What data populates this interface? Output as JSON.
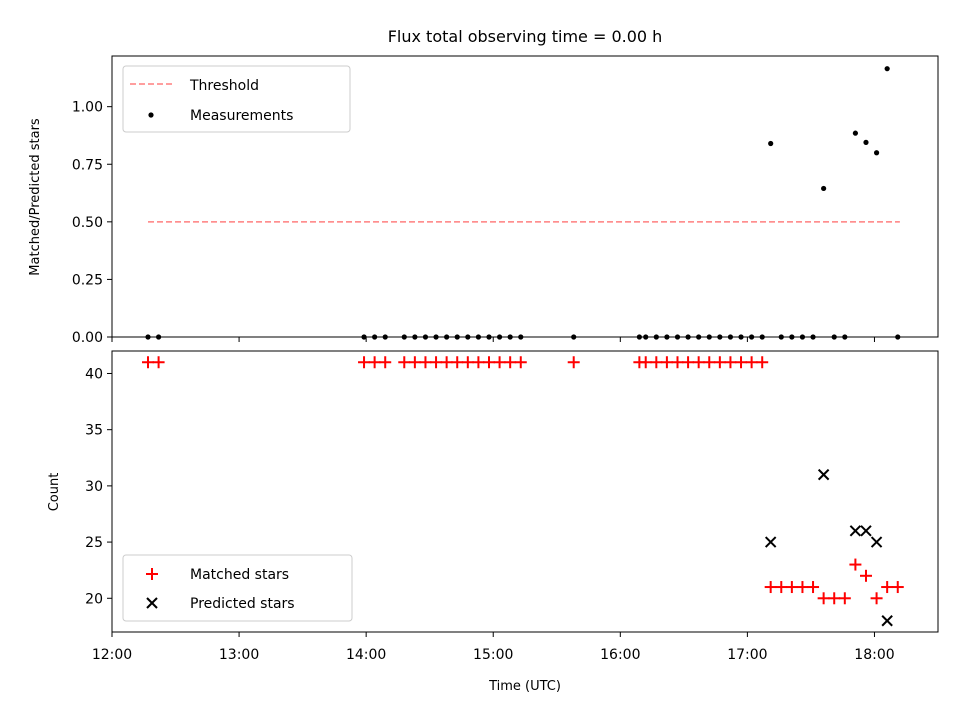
{
  "chart_data": [
    {
      "type": "scatter",
      "title": "Flux total observing time = 0.00 h",
      "xlabel": "",
      "ylabel": "Matched/Predicted stars",
      "xlim": [
        "12:00",
        "18:30"
      ],
      "ylim": [
        0,
        1.22
      ],
      "yticks": [
        0.0,
        0.25,
        0.5,
        0.75,
        1.0
      ],
      "ytick_labels": [
        "0.00",
        "0.25",
        "0.50",
        "0.75",
        "1.00"
      ],
      "legend_position": "upper-left",
      "threshold": {
        "name": "Threshold",
        "value": 0.5,
        "x_range": [
          "12:17",
          "18:12"
        ],
        "color": "#ff7f7f",
        "style": "dashed"
      },
      "series": [
        {
          "name": "Measurements",
          "color": "#000000",
          "marker": "dot",
          "points": [
            [
              "12:17",
              0
            ],
            [
              "12:22",
              0
            ],
            [
              "13:59",
              0
            ],
            [
              "14:04",
              0
            ],
            [
              "14:09",
              0
            ],
            [
              "14:18",
              0
            ],
            [
              "14:23",
              0
            ],
            [
              "14:28",
              0
            ],
            [
              "14:33",
              0
            ],
            [
              "14:38",
              0
            ],
            [
              "14:43",
              0
            ],
            [
              "14:48",
              0
            ],
            [
              "14:53",
              0
            ],
            [
              "14:58",
              0
            ],
            [
              "15:03",
              0
            ],
            [
              "15:08",
              0
            ],
            [
              "15:13",
              0
            ],
            [
              "15:38",
              0
            ],
            [
              "16:09",
              0
            ],
            [
              "16:12",
              0
            ],
            [
              "16:17",
              0
            ],
            [
              "16:22",
              0
            ],
            [
              "16:27",
              0
            ],
            [
              "16:32",
              0
            ],
            [
              "16:37",
              0
            ],
            [
              "16:42",
              0
            ],
            [
              "16:47",
              0
            ],
            [
              "16:52",
              0
            ],
            [
              "16:57",
              0
            ],
            [
              "17:02",
              0
            ],
            [
              "17:07",
              0
            ],
            [
              "17:11",
              0.84
            ],
            [
              "17:16",
              0
            ],
            [
              "17:21",
              0
            ],
            [
              "17:26",
              0
            ],
            [
              "17:31",
              0
            ],
            [
              "17:36",
              0.645
            ],
            [
              "17:41",
              0
            ],
            [
              "17:46",
              0
            ],
            [
              "17:51",
              0.885
            ],
            [
              "17:56",
              0.845
            ],
            [
              "18:01",
              0.8
            ],
            [
              "18:06",
              1.165
            ],
            [
              "18:11",
              0
            ]
          ]
        }
      ]
    },
    {
      "type": "scatter",
      "title": "",
      "xlabel": "Time (UTC)",
      "ylabel": "Count",
      "xlim": [
        "12:00",
        "18:30"
      ],
      "ylim": [
        17,
        42
      ],
      "xticks": [
        "12:00",
        "13:00",
        "14:00",
        "15:00",
        "16:00",
        "17:00",
        "18:00"
      ],
      "yticks": [
        20,
        25,
        30,
        35,
        40
      ],
      "legend_position": "lower-left",
      "series": [
        {
          "name": "Matched stars",
          "color": "#ff0000",
          "marker": "plus",
          "points": [
            [
              "12:17",
              41
            ],
            [
              "12:22",
              41
            ],
            [
              "13:59",
              41
            ],
            [
              "14:04",
              41
            ],
            [
              "14:09",
              41
            ],
            [
              "14:18",
              41
            ],
            [
              "14:23",
              41
            ],
            [
              "14:28",
              41
            ],
            [
              "14:33",
              41
            ],
            [
              "14:38",
              41
            ],
            [
              "14:43",
              41
            ],
            [
              "14:48",
              41
            ],
            [
              "14:53",
              41
            ],
            [
              "14:58",
              41
            ],
            [
              "15:03",
              41
            ],
            [
              "15:08",
              41
            ],
            [
              "15:13",
              41
            ],
            [
              "15:38",
              41
            ],
            [
              "16:09",
              41
            ],
            [
              "16:12",
              41
            ],
            [
              "16:17",
              41
            ],
            [
              "16:22",
              41
            ],
            [
              "16:27",
              41
            ],
            [
              "16:32",
              41
            ],
            [
              "16:37",
              41
            ],
            [
              "16:42",
              41
            ],
            [
              "16:47",
              41
            ],
            [
              "16:52",
              41
            ],
            [
              "16:57",
              41
            ],
            [
              "17:02",
              41
            ],
            [
              "17:07",
              41
            ],
            [
              "17:11",
              21
            ],
            [
              "17:16",
              21
            ],
            [
              "17:21",
              21
            ],
            [
              "17:26",
              21
            ],
            [
              "17:31",
              21
            ],
            [
              "17:36",
              20
            ],
            [
              "17:41",
              20
            ],
            [
              "17:46",
              20
            ],
            [
              "17:51",
              23
            ],
            [
              "17:56",
              22
            ],
            [
              "18:01",
              20
            ],
            [
              "18:06",
              21
            ],
            [
              "18:11",
              21
            ]
          ]
        },
        {
          "name": "Predicted stars",
          "color": "#000000",
          "marker": "x",
          "points": [
            [
              "17:11",
              25
            ],
            [
              "17:36",
              31
            ],
            [
              "17:51",
              26
            ],
            [
              "17:56",
              26
            ],
            [
              "18:01",
              25
            ],
            [
              "18:06",
              18
            ]
          ]
        }
      ]
    }
  ]
}
